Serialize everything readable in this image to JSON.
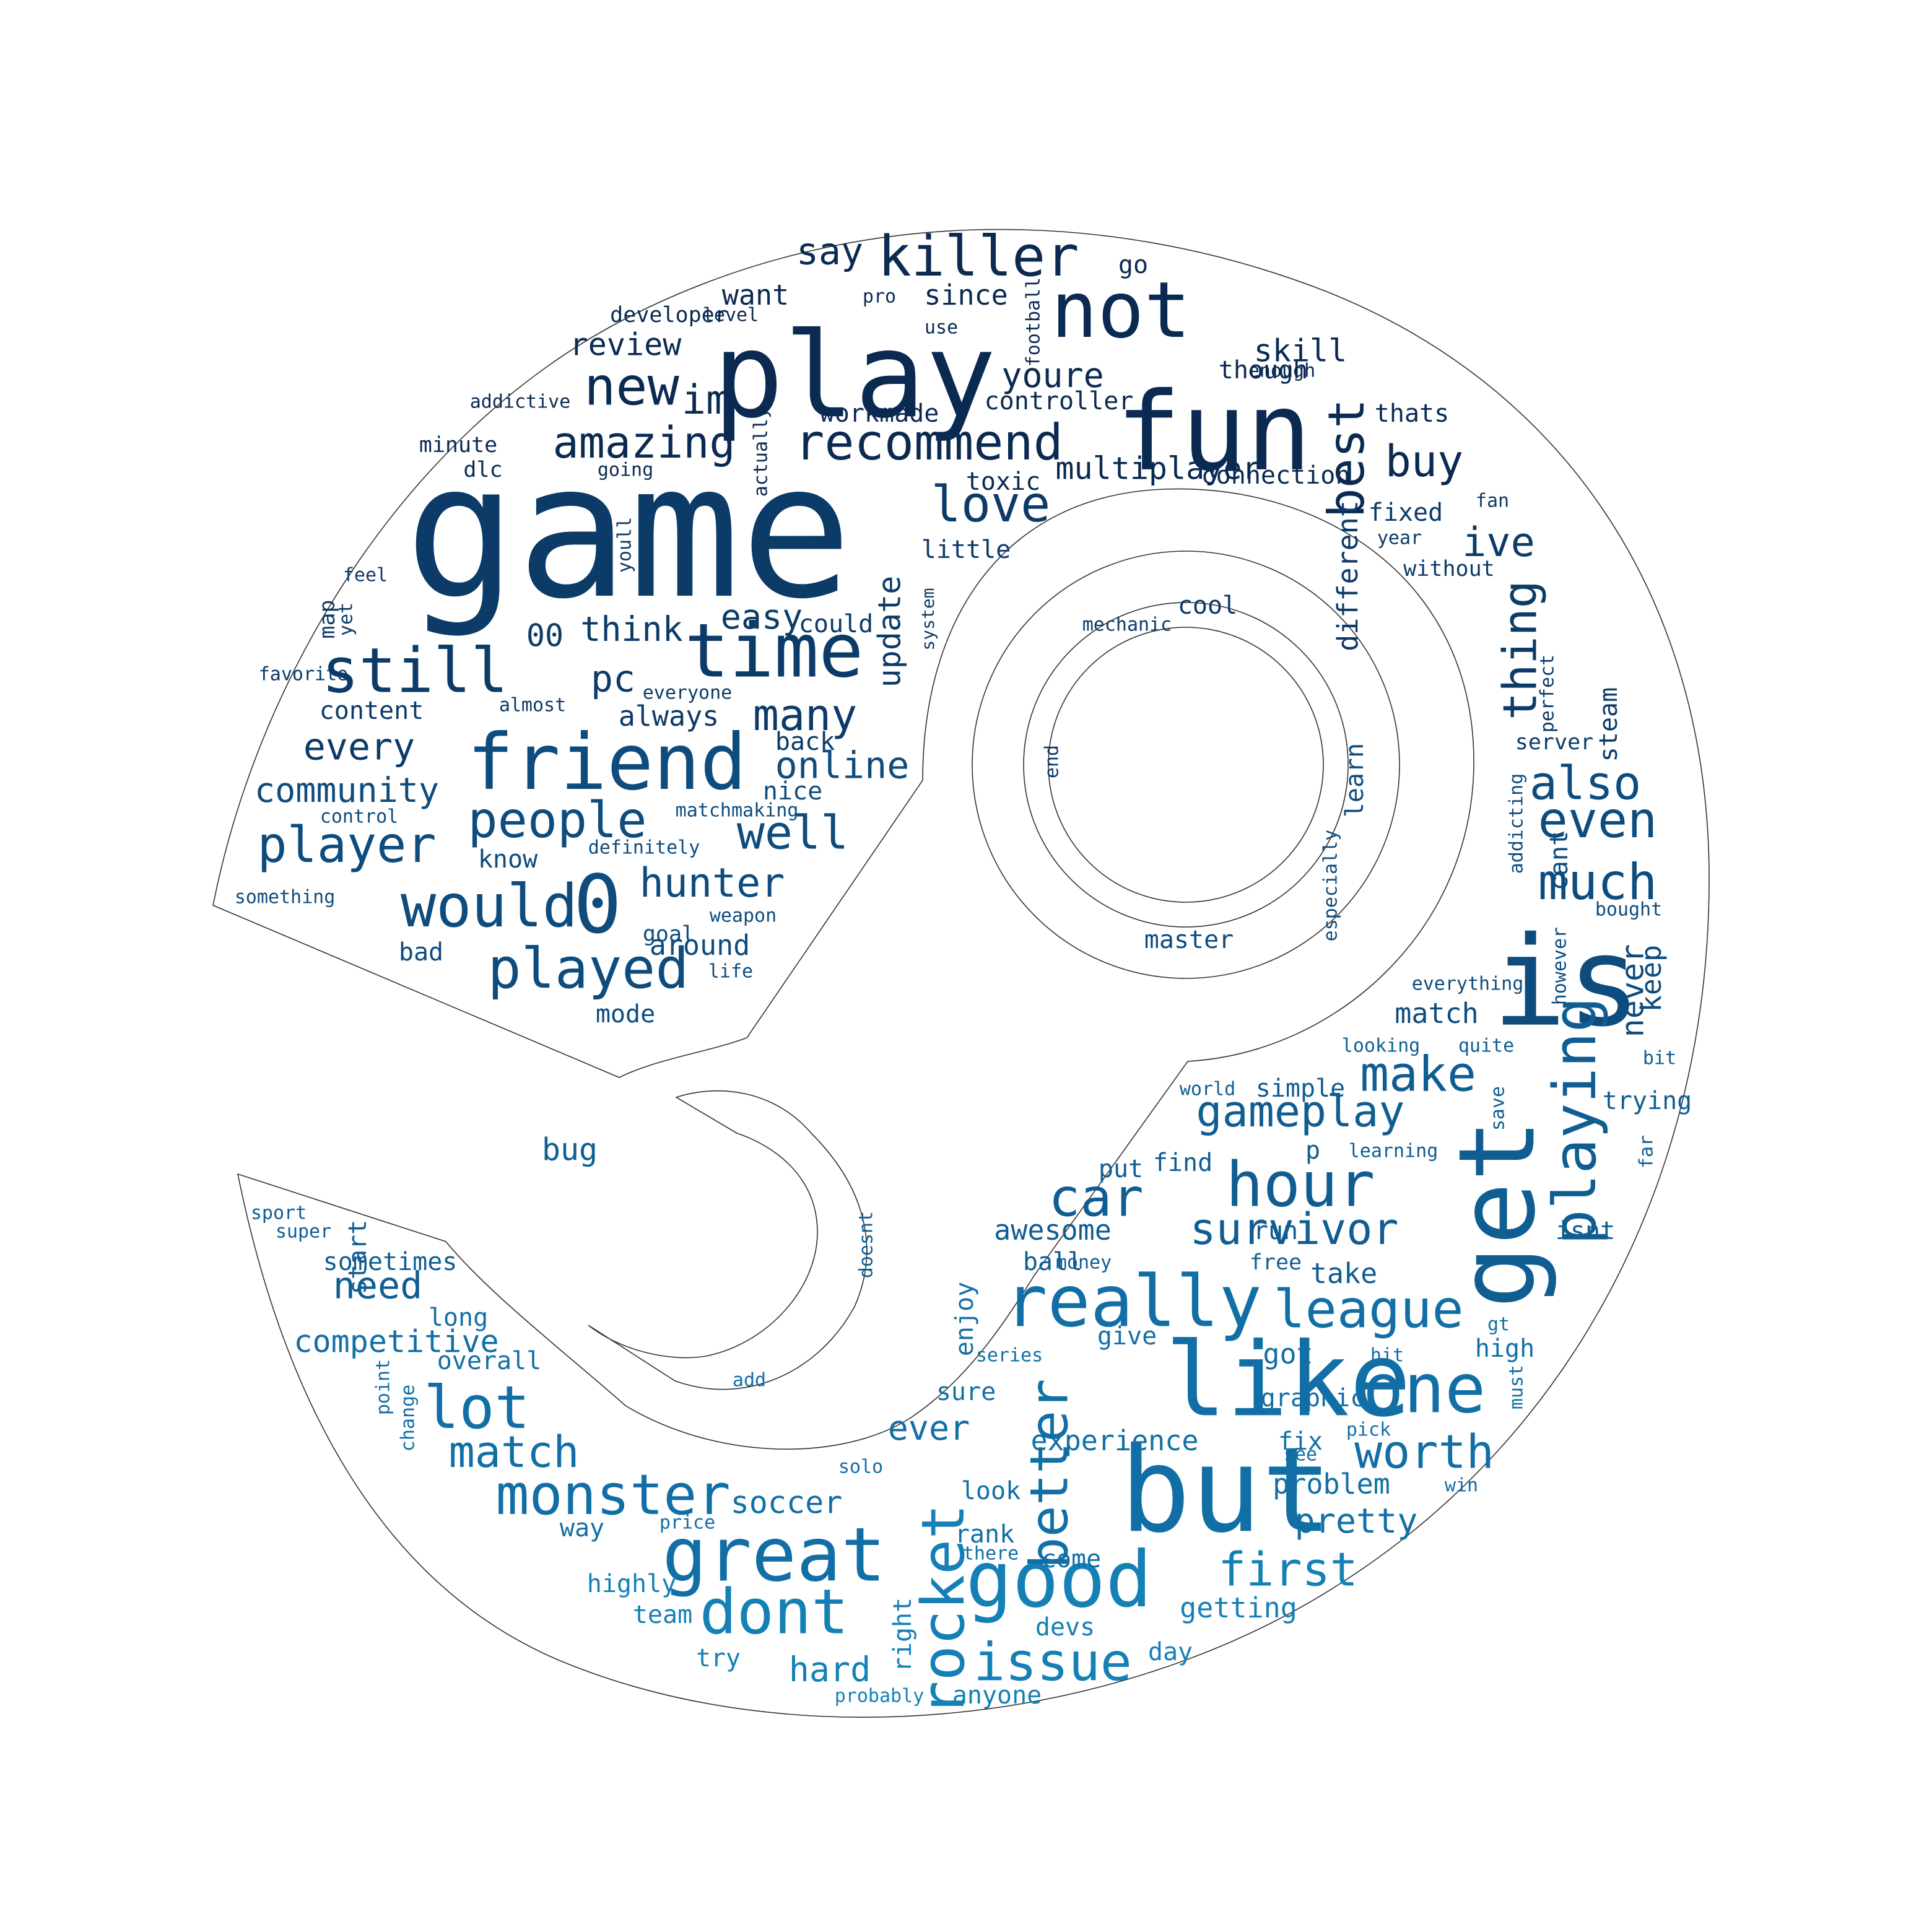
{
  "palette": [
    "#0b2a52",
    "#0c3b68",
    "#0e4c7e",
    "#105d92",
    "#126fa6",
    "#1480b6"
  ],
  "words": [
    "game",
    "is",
    "but",
    "play",
    "fun",
    "not",
    "like",
    "get",
    "time",
    "friend",
    "killer",
    "great",
    "really",
    "good",
    "one",
    "playing",
    "would",
    "0",
    "hour",
    "still",
    "dont",
    "lot",
    "monster",
    "rocket",
    "played",
    "issue",
    "league",
    "car",
    "player",
    "people",
    "make",
    "better",
    "survivor",
    "much",
    "even",
    "recommend",
    "new",
    "amazing",
    "love",
    "best",
    "worth",
    "first",
    "match",
    "hunter",
    "gameplay",
    "also",
    "well",
    "thing",
    "im",
    "buy",
    "many",
    "say",
    "pc",
    "community",
    "ive",
    "every",
    "youre",
    "skill",
    "review",
    "soccer",
    "pretty",
    "update",
    "never",
    "multiplayer",
    "online",
    "easy",
    "need",
    "think",
    "hard",
    "00",
    "ever",
    "since",
    "always",
    "want",
    "getting",
    "take",
    "keep",
    "steam",
    "cant",
    "problem",
    "got",
    "around",
    "different",
    "go",
    "learn",
    "bug",
    "server",
    "competitive",
    "experience",
    "content",
    "mode",
    "high",
    "fixed",
    "thats",
    "though",
    "controller",
    "workmade",
    "toxic",
    "little",
    "could",
    "connection",
    "master",
    "way",
    "enjoy",
    "awesome",
    "give",
    "anyone",
    "look",
    "devs",
    "find",
    "put",
    "run",
    "ball",
    "free",
    "match",
    "simple",
    "start",
    "nice",
    "back",
    "know",
    "bad",
    "goal",
    "overall",
    "sometimes",
    "long",
    "highly",
    "team",
    "try",
    "day",
    "fix",
    "graphic",
    "sure",
    "pick",
    "see",
    "minute",
    "dlc",
    "developer",
    "level",
    "use",
    "football",
    "enough",
    "pro",
    "addictive",
    "going",
    "actually",
    "youll",
    "feel",
    "map",
    "yet",
    "favorite",
    "everyone",
    "almost",
    "system",
    "cool",
    "mechanic",
    "end",
    "especially",
    "addicting",
    "perfect",
    "fan",
    "year",
    "without",
    "bought",
    "everything",
    "however",
    "looking",
    "quite",
    "bit",
    "trying",
    "world",
    "save",
    "learning",
    "far",
    "p",
    "isnt",
    "series",
    "hit",
    "gt",
    "must",
    "money",
    "solo",
    "win",
    "price",
    "there",
    "come",
    "rank",
    "right",
    "probably",
    "doesnt",
    "add",
    "sport",
    "super",
    "point",
    "change",
    "something",
    "control",
    "matchmaking",
    "definitely",
    "weapon",
    "life"
  ]
}
